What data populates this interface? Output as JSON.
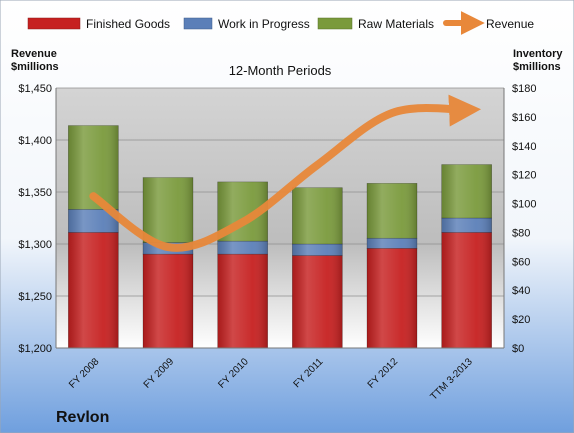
{
  "chart_data": {
    "type": "bar",
    "company": "Revlon",
    "title": "12-Month Periods",
    "left_axis_label": [
      "Revenue",
      "$millions"
    ],
    "right_axis_label": [
      "Inventory",
      "$millions"
    ],
    "categories": [
      "FY 2008",
      "FY 2009",
      "FY 2010",
      "FY 2011",
      "FY 2012",
      "TTM 3-2013"
    ],
    "stacked": true,
    "series": [
      {
        "name": "Finished Goods",
        "axis": "right",
        "color": "#c62020",
        "values": [
          80,
          65,
          65,
          64,
          69,
          80
        ]
      },
      {
        "name": "Work in Progress",
        "axis": "right",
        "color": "#5b7fb8",
        "values": [
          16,
          8,
          9,
          8,
          7,
          10
        ]
      },
      {
        "name": "Raw Materials",
        "axis": "right",
        "color": "#7a9a3c",
        "values": [
          58,
          45,
          41,
          39,
          38,
          37
        ]
      }
    ],
    "line_series": {
      "name": "Revenue",
      "axis": "left",
      "color": "#e8883a",
      "values": [
        1346,
        1297,
        1321,
        1376,
        1426,
        1429
      ]
    },
    "left_axis": {
      "min": 1200,
      "max": 1450,
      "ticks": [
        "$1,200",
        "$1,250",
        "$1,300",
        "$1,350",
        "$1,400",
        "$1,450"
      ]
    },
    "right_axis": {
      "min": 0,
      "max": 180,
      "ticks": [
        "$0",
        "$20",
        "$40",
        "$60",
        "$80",
        "$100",
        "$120",
        "$140",
        "$160",
        "$180"
      ]
    },
    "grid": true,
    "legend_position": "top"
  }
}
